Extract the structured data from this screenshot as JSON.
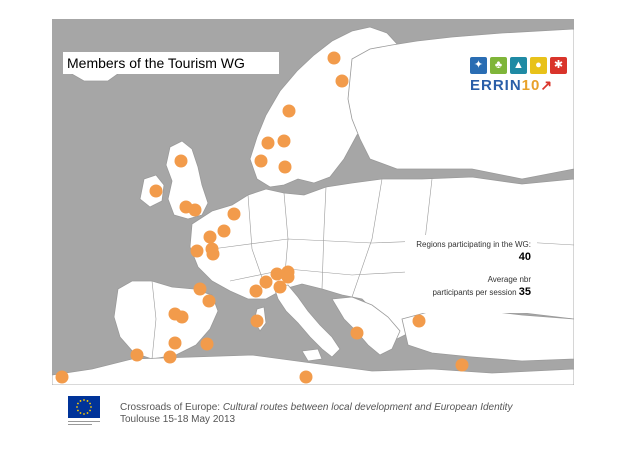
{
  "title": "Members of the Tourism WG",
  "logo": {
    "word": "ERRIN",
    "number": "10",
    "tile_colors": [
      "#2a6db3",
      "#7fb539",
      "#1f8aa4",
      "#e8c21a",
      "#d9342b"
    ],
    "tile_icons": [
      "star-icon",
      "tree-icon",
      "flask-icon",
      "person-icon",
      "snowflake-icon"
    ],
    "accent_colors": {
      "ERRIN": "#2a5ea8",
      "10": "#e8a12a",
      "arrow": "#d9342b"
    }
  },
  "stats": {
    "regions_label": "Regions participating in the WG:",
    "regions_value": "40",
    "avg_label_1": "Average nbr",
    "avg_label_2": "participants per session",
    "avg_value": "35"
  },
  "footer": {
    "line1_normal": "Crossroads of Europe: ",
    "line1_italic": "Cultural routes between local development and European Identity",
    "line2": "Toulouse 15-18 May 2013",
    "flag_caption": "European Commission"
  },
  "colors": {
    "sea": "#a6a6a6",
    "land": "#ffffff",
    "border": "#9a9a9a",
    "marker": "#f29b4b"
  }
}
